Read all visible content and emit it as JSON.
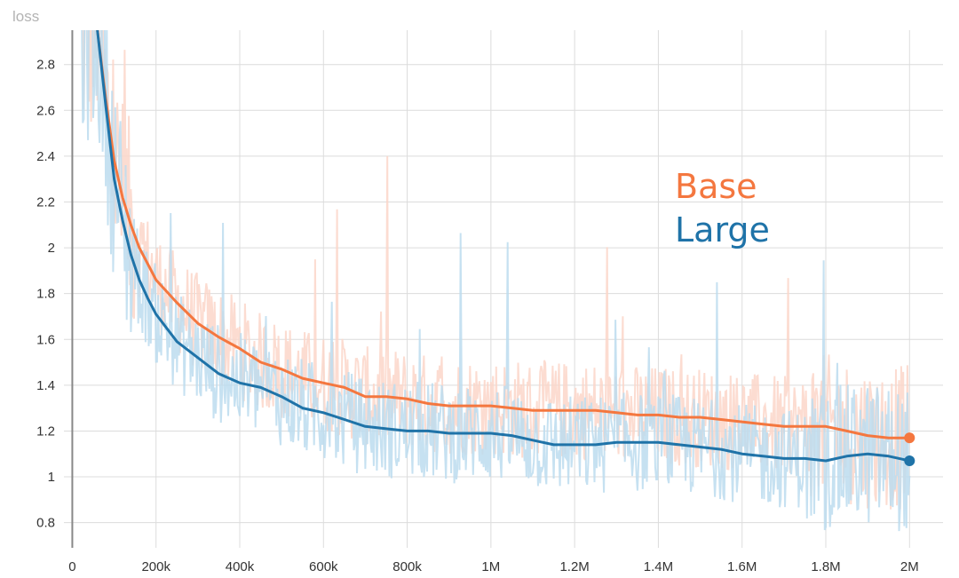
{
  "chart_data": {
    "type": "line",
    "title": "loss",
    "xlabel": "",
    "ylabel": "",
    "xlim": [
      -20000,
      2080000
    ],
    "ylim": [
      0.69,
      2.95
    ],
    "grid": true,
    "legend_placement": "center-right",
    "x_ticks": [
      {
        "value": 0,
        "label": "0"
      },
      {
        "value": 200000,
        "label": "200k"
      },
      {
        "value": 400000,
        "label": "400k"
      },
      {
        "value": 600000,
        "label": "600k"
      },
      {
        "value": 800000,
        "label": "800k"
      },
      {
        "value": 1000000,
        "label": "1M"
      },
      {
        "value": 1200000,
        "label": "1.2M"
      },
      {
        "value": 1400000,
        "label": "1.4M"
      },
      {
        "value": 1600000,
        "label": "1.6M"
      },
      {
        "value": 1800000,
        "label": "1.8M"
      },
      {
        "value": 2000000,
        "label": "2M"
      }
    ],
    "y_ticks": [
      {
        "value": 0.8,
        "label": "0.8"
      },
      {
        "value": 1.0,
        "label": "1"
      },
      {
        "value": 1.2,
        "label": "1.2"
      },
      {
        "value": 1.4,
        "label": "1.4"
      },
      {
        "value": 1.6,
        "label": "1.6"
      },
      {
        "value": 1.8,
        "label": "1.8"
      },
      {
        "value": 2.0,
        "label": "2"
      },
      {
        "value": 2.2,
        "label": "2.2"
      },
      {
        "value": 2.4,
        "label": "2.4"
      },
      {
        "value": 2.6,
        "label": "2.6"
      },
      {
        "value": 2.8,
        "label": "2.8"
      }
    ],
    "series": [
      {
        "name": "Base",
        "color": "#f4773f",
        "raw_color": "#fcd6c9",
        "x": [
          60000,
          80000,
          100000,
          120000,
          140000,
          160000,
          180000,
          200000,
          250000,
          300000,
          350000,
          400000,
          450000,
          500000,
          550000,
          600000,
          650000,
          700000,
          750000,
          800000,
          850000,
          900000,
          950000,
          1000000,
          1050000,
          1100000,
          1150000,
          1200000,
          1250000,
          1300000,
          1350000,
          1400000,
          1450000,
          1500000,
          1550000,
          1600000,
          1650000,
          1700000,
          1750000,
          1800000,
          1850000,
          1900000,
          1950000,
          2000000
        ],
        "y": [
          2.95,
          2.65,
          2.38,
          2.22,
          2.1,
          2.0,
          1.93,
          1.86,
          1.76,
          1.67,
          1.61,
          1.56,
          1.5,
          1.47,
          1.43,
          1.41,
          1.39,
          1.35,
          1.35,
          1.34,
          1.32,
          1.31,
          1.31,
          1.31,
          1.3,
          1.29,
          1.29,
          1.29,
          1.29,
          1.28,
          1.27,
          1.27,
          1.26,
          1.26,
          1.25,
          1.24,
          1.23,
          1.22,
          1.22,
          1.22,
          1.2,
          1.18,
          1.17,
          1.17
        ]
      },
      {
        "name": "Large",
        "color": "#1f73a8",
        "raw_color": "#bcdcef",
        "x": [
          60000,
          80000,
          100000,
          120000,
          140000,
          160000,
          180000,
          200000,
          250000,
          300000,
          350000,
          400000,
          450000,
          500000,
          550000,
          600000,
          650000,
          700000,
          750000,
          800000,
          850000,
          900000,
          950000,
          1000000,
          1050000,
          1100000,
          1150000,
          1200000,
          1250000,
          1300000,
          1350000,
          1400000,
          1450000,
          1500000,
          1550000,
          1600000,
          1650000,
          1700000,
          1750000,
          1800000,
          1850000,
          1900000,
          1950000,
          2000000
        ],
        "y": [
          2.95,
          2.62,
          2.3,
          2.12,
          1.97,
          1.86,
          1.78,
          1.71,
          1.59,
          1.52,
          1.45,
          1.41,
          1.39,
          1.35,
          1.3,
          1.28,
          1.25,
          1.22,
          1.21,
          1.2,
          1.2,
          1.19,
          1.19,
          1.19,
          1.18,
          1.16,
          1.14,
          1.14,
          1.14,
          1.15,
          1.15,
          1.15,
          1.14,
          1.13,
          1.12,
          1.1,
          1.09,
          1.08,
          1.08,
          1.07,
          1.09,
          1.1,
          1.09,
          1.07
        ]
      }
    ]
  }
}
